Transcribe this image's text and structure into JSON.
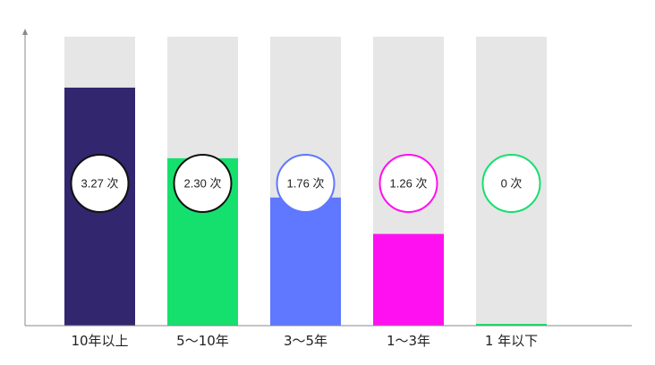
{
  "chart_data": {
    "type": "bar",
    "categories": [
      "10年以上",
      "5～10年",
      "3～5年",
      "1～3年",
      "1 年以下"
    ],
    "values": [
      3.27,
      2.3,
      1.76,
      1.26,
      0
    ],
    "value_labels": [
      "3.27 次",
      "2.30 次",
      "1.76 次",
      "1.26 次",
      "0 次"
    ],
    "ylim": [
      0,
      3.97
    ],
    "grid": false,
    "bar_colors": [
      "#32266e",
      "#15e06e",
      "#6077ff",
      "#ff10f0",
      "#15e06e"
    ],
    "circle_border_colors": [
      "#111111",
      "#111111",
      "#6077ff",
      "#ff10f0",
      "#15e06e"
    ],
    "track_color": "#e6e6e6"
  }
}
